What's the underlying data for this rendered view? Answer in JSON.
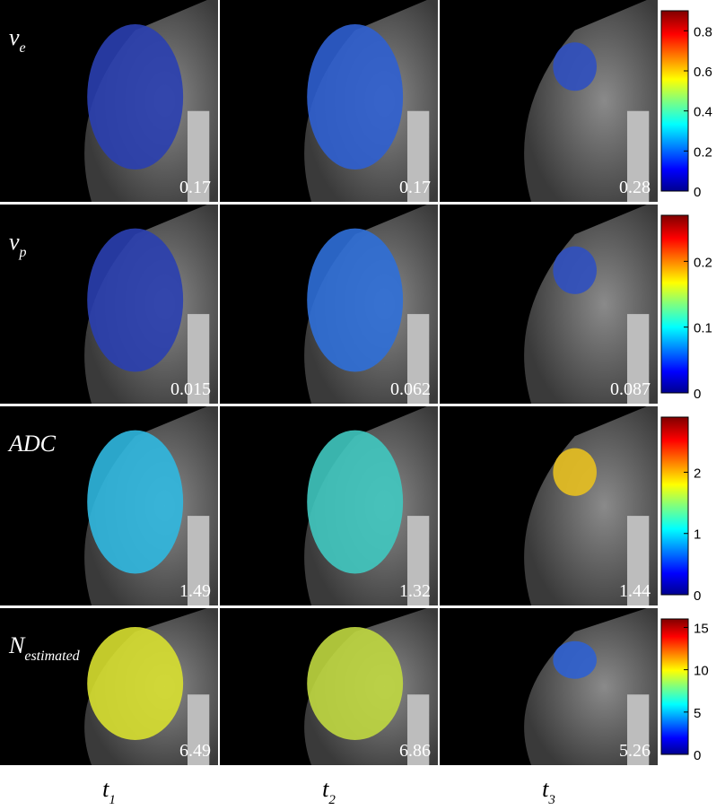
{
  "rows": [
    {
      "label": {
        "base": "v",
        "sub": "e"
      },
      "values": [
        "0.17",
        "0.17",
        "0.28"
      ],
      "colorbar": {
        "lim": [
          0,
          0.9
        ],
        "ticks": [
          0,
          0.2,
          0.4,
          0.6,
          0.8
        ]
      }
    },
    {
      "label": {
        "base": "v",
        "sub": "p"
      },
      "values": [
        "0.015",
        "0.062",
        "0.087"
      ],
      "colorbar": {
        "lim": [
          0,
          0.27
        ],
        "ticks": [
          0,
          0.1,
          0.2
        ]
      }
    },
    {
      "label": {
        "base": "ADC"
      },
      "values": [
        "1.49",
        "1.32",
        "1.44"
      ],
      "colorbar": {
        "lim": [
          0,
          2.9
        ],
        "ticks": [
          0,
          1,
          2
        ]
      }
    },
    {
      "label": {
        "base": "N",
        "sub": "estimated"
      },
      "values": [
        "6.49",
        "6.86",
        "5.26"
      ],
      "colorbar": {
        "lim": [
          0,
          16
        ],
        "ticks": [
          0,
          5,
          10,
          15
        ]
      }
    }
  ],
  "columns": [
    {
      "base": "t",
      "sub": "1"
    },
    {
      "base": "t",
      "sub": "2"
    },
    {
      "base": "t",
      "sub": "3"
    }
  ]
}
